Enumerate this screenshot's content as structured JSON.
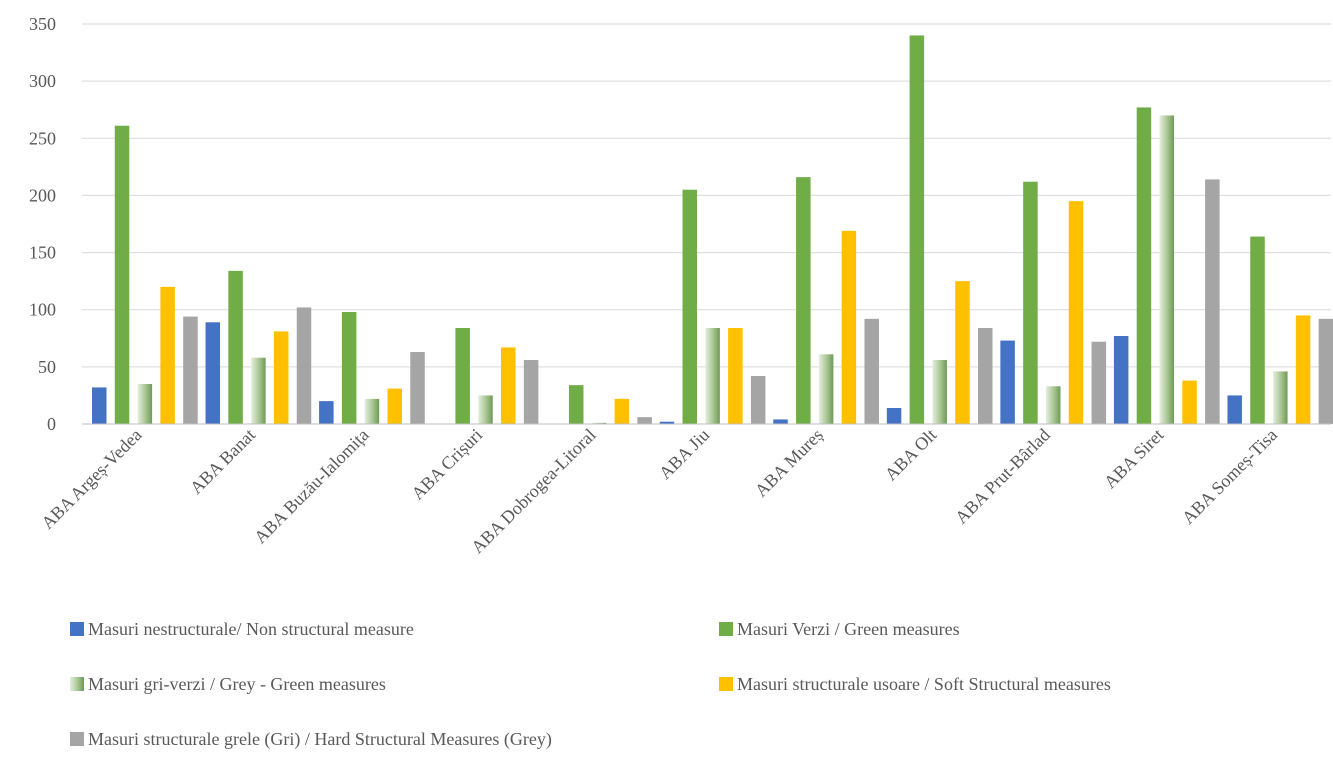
{
  "chart_data": {
    "type": "bar",
    "title": "",
    "xlabel": "",
    "ylabel": "",
    "ylim": [
      0,
      350
    ],
    "yticks": [
      0,
      50,
      100,
      150,
      200,
      250,
      300,
      350
    ],
    "grid": true,
    "legend_position": "bottom",
    "categories": [
      "ABA Argeș-Vedea",
      "ABA Banat",
      "ABA Buzău-Ialomița",
      "ABA Crișuri",
      "ABA Dobrogea-Litoral",
      "ABA Jiu",
      "ABA Mureș",
      "ABA Olt",
      "ABA Prut-Bârlad",
      "ABA Siret",
      "ABA Someș-Tisa"
    ],
    "series": [
      {
        "name": "Masuri nestructurale/ Non structural measure",
        "color": "#4472C4",
        "pattern": "solid",
        "values": [
          32,
          89,
          20,
          0,
          0,
          2,
          4,
          14,
          73,
          77,
          25
        ]
      },
      {
        "name": "Masuri Verzi / Green measures",
        "color": "#70AD47",
        "pattern": "solid",
        "values": [
          261,
          134,
          98,
          84,
          34,
          205,
          216,
          340,
          212,
          277,
          164
        ]
      },
      {
        "name": "Masuri gri-verzi / Grey - Green measures",
        "color": "#70AD47",
        "pattern": "gradient",
        "values": [
          35,
          58,
          22,
          25,
          1,
          84,
          61,
          56,
          33,
          270,
          46
        ]
      },
      {
        "name": "Masuri structurale usoare / Soft Structural measures",
        "color": "#FFC000",
        "pattern": "solid",
        "values": [
          120,
          81,
          31,
          67,
          22,
          84,
          169,
          125,
          195,
          38,
          95
        ]
      },
      {
        "name": "Masuri structurale grele (Gri) / Hard Structural Measures (Grey)",
        "color": "#A5A5A5",
        "pattern": "solid",
        "values": [
          94,
          102,
          63,
          56,
          6,
          42,
          92,
          84,
          72,
          214,
          92
        ]
      }
    ]
  }
}
